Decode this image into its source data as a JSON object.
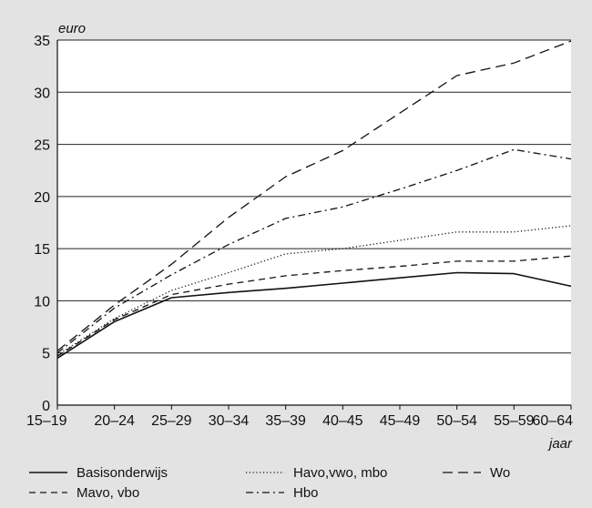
{
  "chart_data": {
    "type": "line",
    "title": "",
    "ylabel": "euro",
    "xlabel": "jaar",
    "ylim": [
      0,
      35
    ],
    "yticks": [
      0,
      5,
      10,
      15,
      20,
      25,
      30,
      35
    ],
    "grid": true,
    "legend_position": "bottom",
    "categories": [
      "15–19",
      "20–24",
      "25–29",
      "30–34",
      "35–39",
      "40–45",
      "45–49",
      "50–54",
      "55–59",
      "60–64"
    ],
    "series": [
      {
        "name": "Basisonderwijs",
        "style": "solid",
        "values": [
          4.5,
          8.0,
          10.3,
          10.8,
          11.2,
          11.7,
          12.2,
          12.7,
          12.6,
          11.4
        ]
      },
      {
        "name": "Mavo, vbo",
        "style": "dashed-short",
        "values": [
          4.7,
          8.2,
          10.6,
          11.6,
          12.4,
          12.9,
          13.3,
          13.8,
          13.8,
          14.3
        ]
      },
      {
        "name": "Havo,vwo, mbo",
        "style": "dotted",
        "values": [
          4.8,
          8.3,
          11.0,
          12.7,
          14.5,
          15.0,
          15.8,
          16.6,
          16.6,
          17.2
        ]
      },
      {
        "name": "Hbo",
        "style": "dash-dot",
        "values": [
          5.0,
          9.3,
          12.5,
          15.4,
          17.9,
          19.0,
          20.7,
          22.5,
          24.5,
          23.6
        ]
      },
      {
        "name": "Wo",
        "style": "dashed-long",
        "values": [
          5.2,
          9.6,
          13.5,
          18.0,
          21.9,
          24.4,
          28.0,
          31.6,
          32.8,
          34.9
        ]
      }
    ]
  }
}
